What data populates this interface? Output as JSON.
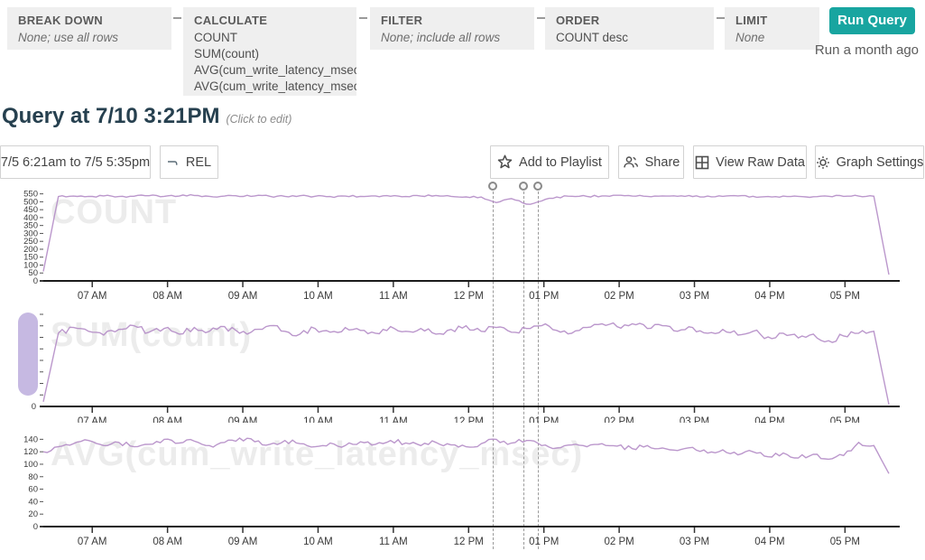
{
  "colors": {
    "accent_teal": "#18a5a0",
    "line_purple": "#b48cc6",
    "pill_purple": "#c6b9e2",
    "panel_bg": "#efefef",
    "title_navy": "#26404f",
    "watermark_gray": "#ececec"
  },
  "query_builder": {
    "panels": [
      {
        "label": "BREAK DOWN",
        "values": [
          {
            "text": "None; use all rows",
            "italic": true
          }
        ]
      },
      {
        "label": "CALCULATE",
        "values": [
          {
            "text": "COUNT",
            "italic": false
          },
          {
            "text": "SUM(count)",
            "italic": false
          },
          {
            "text": "AVG(cum_write_latency_msec)",
            "italic": false
          },
          {
            "text": "AVG(cum_write_latency_msec.",
            "italic": false
          }
        ]
      },
      {
        "label": "FILTER",
        "values": [
          {
            "text": "None; include all rows",
            "italic": true
          }
        ]
      },
      {
        "label": "ORDER",
        "values": [
          {
            "text": "COUNT desc",
            "italic": false
          }
        ]
      },
      {
        "label": "LIMIT",
        "values": [
          {
            "text": "None",
            "italic": true
          }
        ]
      }
    ],
    "run_button_label": "Run Query",
    "run_status": "Run a month ago"
  },
  "header": {
    "title": "Query at 7/10 3:21PM",
    "subtitle": "(Click to edit)"
  },
  "toolbar": {
    "time_range_label": "7/5 6:21am to 7/5 5:35pm",
    "rel_label": "REL",
    "actions": [
      {
        "icon": "star-icon",
        "label": "Add to Playlist"
      },
      {
        "icon": "people-icon",
        "label": "Share"
      },
      {
        "icon": "grid-icon",
        "label": "View Raw Data"
      },
      {
        "icon": "gear-icon",
        "label": "Graph Settings"
      }
    ]
  },
  "time_axis": {
    "start": "7/5 6:21am",
    "end": "7/5 5:35pm",
    "total_minutes": 674,
    "tick_labels": [
      "07 AM",
      "08 AM",
      "09 AM",
      "10 AM",
      "11 AM",
      "12 PM",
      "01 PM",
      "02 PM",
      "03 PM",
      "04 PM",
      "05 PM"
    ],
    "tick_minutes": [
      39,
      99,
      159,
      219,
      279,
      339,
      399,
      459,
      519,
      579,
      639
    ]
  },
  "event_markers": {
    "minutes": [
      358,
      383,
      394
    ]
  },
  "chart_data": [
    {
      "type": "line",
      "title": "COUNT",
      "watermark": "COUNT",
      "ylim": [
        0,
        565
      ],
      "y_ticks": [
        550,
        500,
        450,
        400,
        350,
        300,
        250,
        200,
        150,
        100,
        50,
        0
      ],
      "y_unlabeled_ticks": 0,
      "x_start": "6:21am",
      "x_end": "5:35pm",
      "legend": "none",
      "grid": false,
      "values": [
        60,
        533,
        536,
        534,
        537,
        533,
        535,
        538,
        534,
        536,
        540,
        534,
        536,
        533,
        537,
        535,
        534,
        538,
        535,
        533,
        536,
        534,
        537,
        535,
        533,
        536,
        540,
        534,
        531,
        530,
        495,
        520,
        485,
        505,
        530,
        535,
        534,
        537,
        541,
        536,
        534,
        537,
        535,
        533,
        536,
        534,
        537,
        535,
        533,
        536,
        534,
        532,
        535,
        534,
        536,
        535,
        40
      ]
    },
    {
      "type": "line",
      "title": "SUM(count)",
      "watermark": "SUM(count)",
      "ylim": [
        0,
        1
      ],
      "y_ticks": [
        0
      ],
      "y_unlabeled_ticks": 8,
      "x_start": "6:21am",
      "x_end": "5:35pm",
      "legend": "none",
      "grid": false,
      "values_note": "y-axis labels not visible; values normalized to plot height",
      "values": [
        0.05,
        0.78,
        0.84,
        0.8,
        0.76,
        0.82,
        0.86,
        0.79,
        0.83,
        0.77,
        0.84,
        0.8,
        0.85,
        0.78,
        0.82,
        0.86,
        0.8,
        0.77,
        0.83,
        0.79,
        0.84,
        0.81,
        0.78,
        0.85,
        0.8,
        0.83,
        0.77,
        0.82,
        0.86,
        0.8,
        0.84,
        0.79,
        0.83,
        0.86,
        0.81,
        0.78,
        0.84,
        0.88,
        0.85,
        0.88,
        0.83,
        0.86,
        0.8,
        0.84,
        0.78,
        0.82,
        0.76,
        0.8,
        0.74,
        0.78,
        0.73,
        0.77,
        0.7,
        0.75,
        0.78,
        0.8,
        0.02
      ]
    },
    {
      "type": "line",
      "title": "AVG(cum_write_latency_msec)",
      "watermark": "AVG(cum_write_latency_msec)",
      "ylim": [
        0,
        155
      ],
      "y_ticks": [
        140,
        120,
        100,
        80,
        60,
        40,
        20,
        0
      ],
      "y_unlabeled_ticks": 0,
      "x_start": "6:21am",
      "x_end": "5:35pm",
      "legend": "none",
      "grid": false,
      "values": [
        120,
        128,
        133,
        138,
        130,
        135,
        128,
        132,
        140,
        134,
        137,
        130,
        135,
        142,
        136,
        132,
        138,
        133,
        128,
        134,
        130,
        136,
        132,
        138,
        134,
        130,
        135,
        131,
        128,
        133,
        140,
        134,
        138,
        130,
        126,
        131,
        128,
        133,
        129,
        125,
        130,
        126,
        122,
        127,
        118,
        123,
        115,
        120,
        112,
        118,
        110,
        116,
        108,
        114,
        135,
        130,
        85
      ]
    }
  ]
}
